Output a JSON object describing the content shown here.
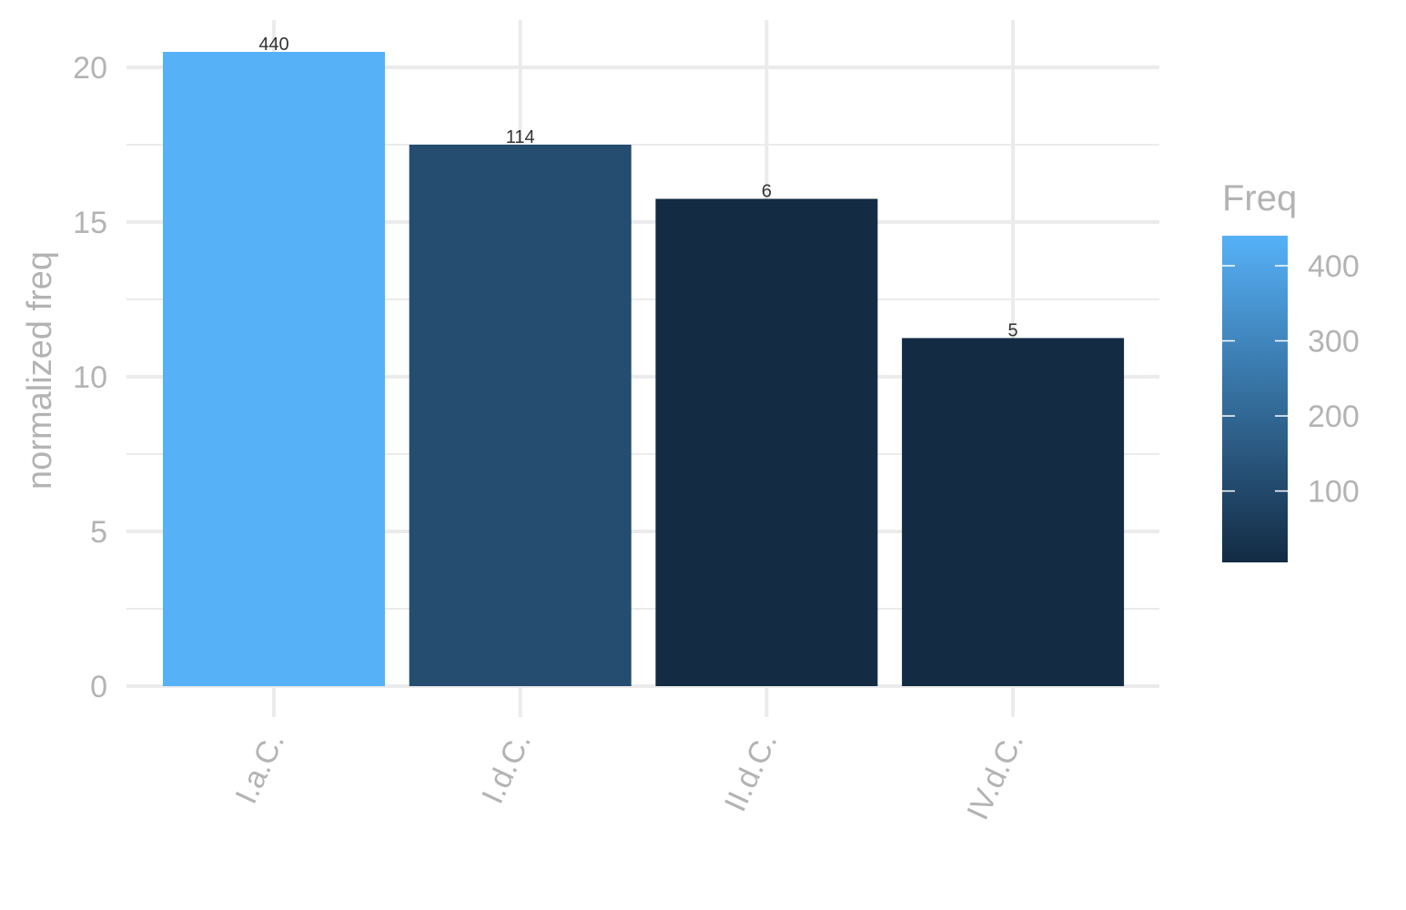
{
  "chart_data": {
    "type": "bar",
    "categories": [
      "I.a.C.",
      "I.d.C.",
      "II.d.C.",
      "IV.d.C."
    ],
    "values": [
      20.5,
      17.5,
      15.75,
      11.25
    ],
    "bar_labels": [
      "440",
      "114",
      "6",
      "5"
    ],
    "freq": [
      440,
      114,
      6,
      5
    ],
    "xlabel": "",
    "ylabel": "normalized freq",
    "ylim": [
      0,
      21.5
    ],
    "yticks": [
      0,
      5,
      10,
      15,
      20
    ],
    "grid": true,
    "legend": {
      "title": "Freq",
      "placement": "right",
      "type": "colorbar",
      "range": [
        5,
        440
      ],
      "ticks": [
        100,
        200,
        300,
        400
      ],
      "low_color": "#132B43",
      "high_color": "#56B1F7"
    }
  }
}
